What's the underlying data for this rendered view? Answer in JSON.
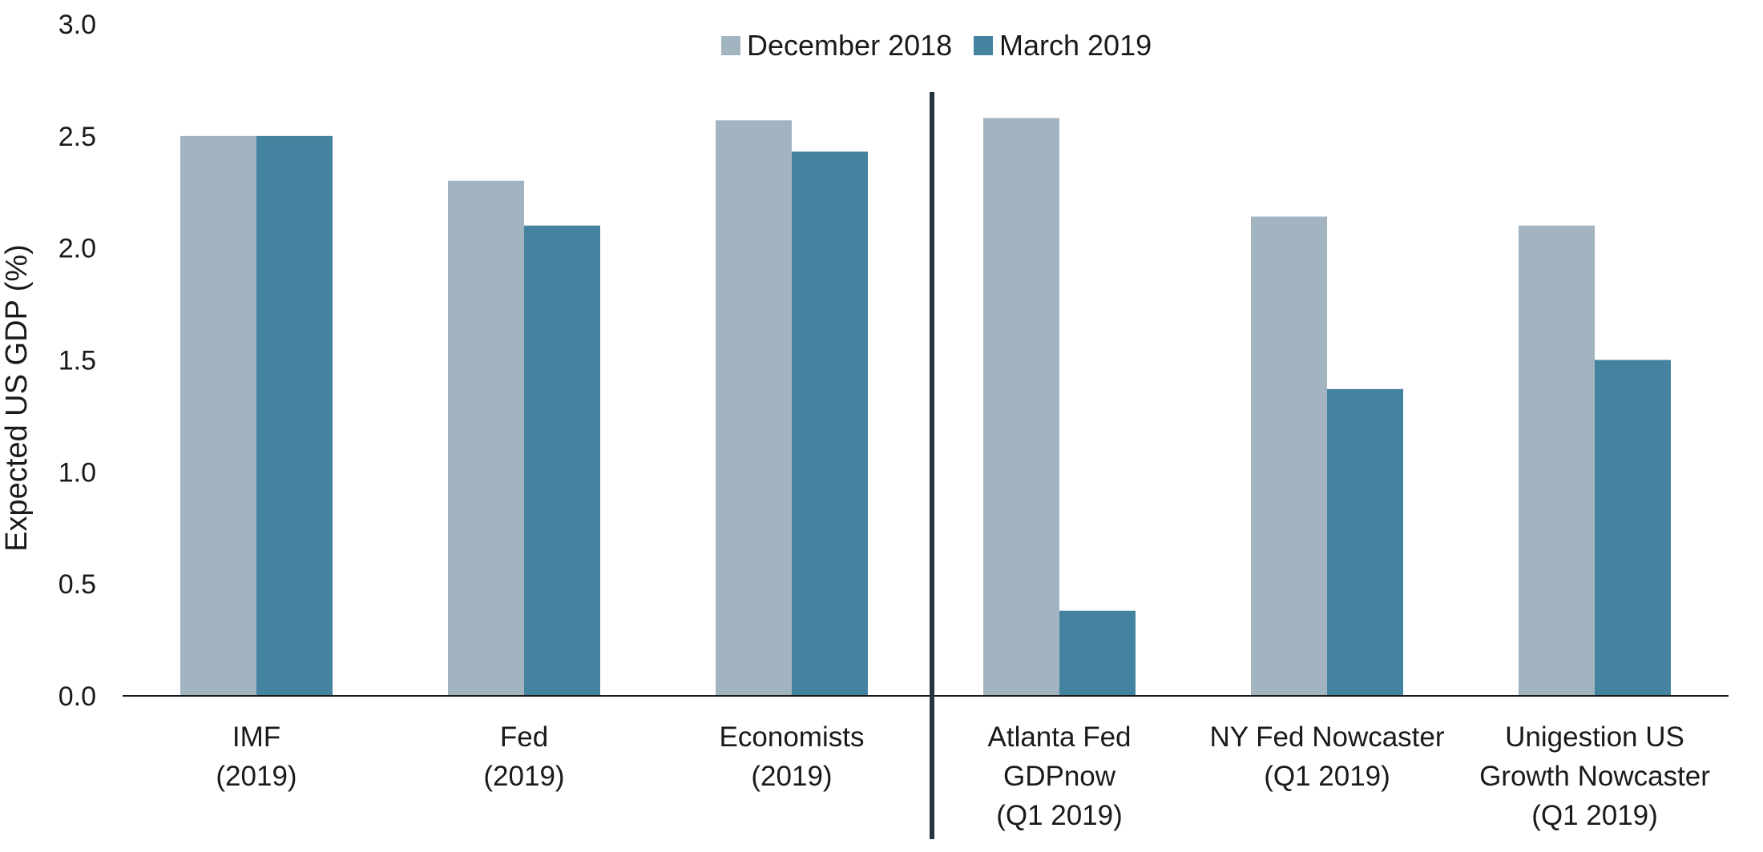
{
  "chart_data": {
    "type": "bar",
    "title": "",
    "xlabel": "",
    "ylabel": "Expected US GDP  (%)",
    "ylim": [
      0,
      3.0
    ],
    "yticks": [
      "0.0",
      "0.5",
      "1.0",
      "1.5",
      "2.0",
      "2.5",
      "3.0"
    ],
    "grid": false,
    "legend_position": "top-center",
    "categories": [
      [
        "IMF",
        "(2019)"
      ],
      [
        "Fed",
        "(2019)"
      ],
      [
        "Economists",
        "(2019)"
      ],
      [
        "Atlanta Fed",
        "GDPnow",
        "(Q1 2019)"
      ],
      [
        "NY Fed Nowcaster",
        "(Q1 2019)"
      ],
      [
        "Unigestion US",
        "Growth Nowcaster",
        "(Q1 2019)"
      ]
    ],
    "series": [
      {
        "name": "December 2018",
        "color": "#a2b4c0",
        "values": [
          2.5,
          2.3,
          2.57,
          2.58,
          2.14,
          2.1
        ]
      },
      {
        "name": "March 2019",
        "color": "#44839f",
        "values": [
          2.5,
          2.1,
          2.43,
          0.38,
          1.37,
          1.5
        ]
      }
    ],
    "separator_color": "#263640"
  }
}
